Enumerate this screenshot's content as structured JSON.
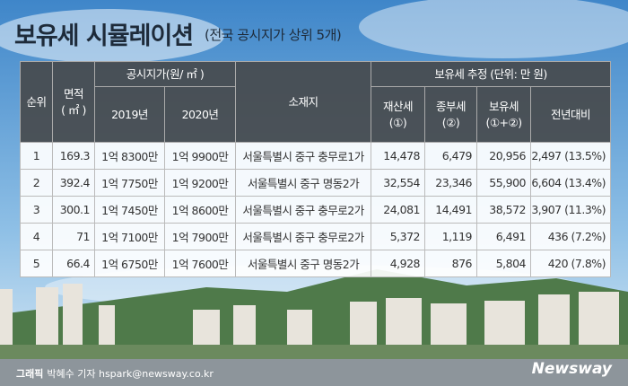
{
  "header": {
    "title": "보유세 시뮬레이션",
    "subtitle": "(전국 공시지가 상위 5개)"
  },
  "table": {
    "head": {
      "rank": "순위",
      "area": [
        "면적",
        "( ㎡ )"
      ],
      "price_group": "공시지가(원/ ㎡ )",
      "year_2019": "2019년",
      "year_2020": "2020년",
      "location": "소재지",
      "tax_group": "보유세 추정 (단위: 만 원)",
      "property_tax": [
        "재산세",
        "(①)"
      ],
      "comprehensive_tax": [
        "종부세",
        "(②)"
      ],
      "holding_tax": [
        "보유세",
        "(①+②)"
      ],
      "yoy": "전년대비"
    },
    "rows": [
      [
        "1",
        "169.3",
        "1억 8300만",
        "1억 9900만",
        "서울특별시 중구 충무로1가",
        "14,478",
        "6,479",
        "20,956",
        "2,497 (13.5%)"
      ],
      [
        "2",
        "392.4",
        "1억 7750만",
        "1억 9200만",
        "서울특별시 중구 명동2가",
        "32,554",
        "23,346",
        "55,900",
        "6,604 (13.4%)"
      ],
      [
        "3",
        "300.1",
        "1억 7450만",
        "1억 8600만",
        "서울특별시 중구 충무로2가",
        "24,081",
        "14,491",
        "38,572",
        "3,907 (11.3%)"
      ],
      [
        "4",
        "71",
        "1억 7100만",
        "1억 7900만",
        "서울특별시 중구 충무로2가",
        "5,372",
        "1,119",
        "6,491",
        "436 (7.2%)"
      ],
      [
        "5",
        "66.4",
        "1억 6750만",
        "1억 7600만",
        "서울특별시 중구 명동2가",
        "4,928",
        "876",
        "5,804",
        "420 (7.8%)"
      ]
    ]
  },
  "footer": {
    "credit_label": "그래픽",
    "credit": "박혜수 기자 hspark@newsway.co.kr",
    "logo": "Newsway"
  }
}
